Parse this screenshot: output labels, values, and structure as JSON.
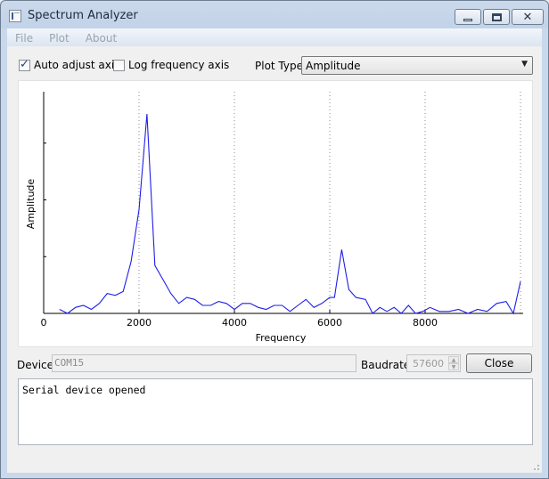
{
  "window": {
    "title": "Spectrum Analyzer"
  },
  "menu": {
    "items": [
      "File",
      "Plot",
      "About"
    ]
  },
  "controls": {
    "auto_adjust_label": "Auto adjust axis",
    "auto_adjust_checked": true,
    "log_freq_label": "Log frequency axis",
    "log_freq_checked": false,
    "plot_type_label": "Plot Type",
    "plot_type_value": "Amplitude"
  },
  "chart_data": {
    "type": "line",
    "xlabel": "Frequency",
    "ylabel": "Amplitude",
    "xlim": [
      0,
      10000
    ],
    "ylim": [
      0,
      1
    ],
    "grid": "vertical dotted",
    "xticks": [
      0,
      2000,
      4000,
      6000,
      8000
    ],
    "x": [
      333,
      500,
      667,
      833,
      1000,
      1167,
      1333,
      1500,
      1667,
      1833,
      2000,
      2167,
      2333,
      2500,
      2667,
      2833,
      3000,
      3167,
      3333,
      3500,
      3667,
      3833,
      4000,
      4167,
      4333,
      4500,
      4667,
      4833,
      5000,
      5167,
      5333,
      5500,
      5667,
      5833,
      6000,
      6100,
      6250,
      6400,
      6550,
      6750,
      6900,
      7050,
      7200,
      7350,
      7500,
      7650,
      7800,
      7950,
      8100,
      8300,
      8500,
      8700,
      8900,
      9100,
      9300,
      9500,
      9700,
      9850,
      10000
    ],
    "y": [
      0.02,
      0.0,
      0.03,
      0.04,
      0.02,
      0.05,
      0.1,
      0.09,
      0.11,
      0.26,
      0.52,
      1.0,
      0.24,
      0.17,
      0.1,
      0.05,
      0.08,
      0.07,
      0.04,
      0.04,
      0.06,
      0.05,
      0.02,
      0.05,
      0.05,
      0.03,
      0.02,
      0.04,
      0.04,
      0.01,
      0.04,
      0.07,
      0.03,
      0.05,
      0.08,
      0.08,
      0.32,
      0.12,
      0.08,
      0.07,
      0.0,
      0.03,
      0.01,
      0.03,
      0.0,
      0.04,
      0.0,
      0.01,
      0.03,
      0.01,
      0.01,
      0.02,
      0.0,
      0.02,
      0.01,
      0.05,
      0.06,
      0.0,
      0.16
    ],
    "series_color": "#1e1ee8"
  },
  "device": {
    "label": "Device",
    "value": "COM15",
    "baud_label": "Baudrate",
    "baud_value": "57600",
    "close_label": "Close"
  },
  "console": {
    "text": "Serial device opened"
  }
}
